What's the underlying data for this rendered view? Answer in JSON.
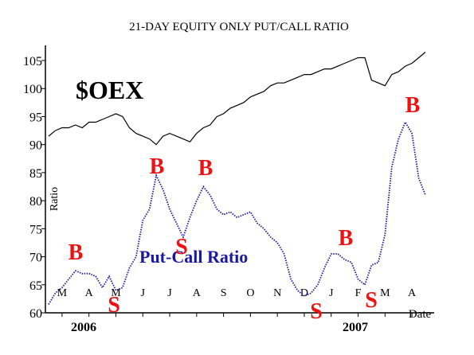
{
  "chart_data": {
    "type": "line",
    "title": "21-DAY EQUITY ONLY PUT/CALL RATIO",
    "y_label": "Ratio",
    "x_label": "Date",
    "categories": [
      null,
      null,
      "M",
      null,
      null,
      null,
      "A",
      null,
      null,
      null,
      "M",
      null,
      null,
      null,
      "J",
      null,
      null,
      null,
      "J",
      null,
      null,
      null,
      "A",
      null,
      null,
      null,
      "S",
      null,
      null,
      null,
      "O",
      null,
      null,
      null,
      "N",
      null,
      null,
      null,
      "D",
      null,
      null,
      null,
      "J",
      null,
      null,
      null,
      "F",
      null,
      null,
      null,
      "M",
      null,
      null,
      null,
      "A",
      null,
      null
    ],
    "series": [
      {
        "name": "$OEX",
        "color": "#000000",
        "values": [
          91.5,
          92.5,
          93,
          93,
          93.5,
          93,
          94,
          94,
          94.5,
          95,
          95.5,
          95,
          93,
          92,
          91.5,
          91,
          90,
          91.5,
          92,
          91.5,
          91,
          90.5,
          92,
          93,
          93.5,
          95,
          95.5,
          96.5,
          97,
          97.5,
          98.5,
          99,
          99.5,
          100.5,
          101,
          101,
          101.5,
          102,
          102.5,
          102.5,
          103,
          103.5,
          103.5,
          104,
          104.5,
          105,
          105.5,
          105.5,
          101.5,
          101,
          100.5,
          102.5,
          103,
          104,
          104.5,
          105.5,
          106.5
        ]
      },
      {
        "name": "Put-Call Ratio",
        "color": "#1a1aa0",
        "values": [
          61.5,
          63.5,
          64.5,
          66,
          67.5,
          67,
          67,
          66.5,
          64.5,
          66.5,
          64,
          64.5,
          68,
          70,
          76.5,
          78.5,
          84.5,
          82,
          78.5,
          76,
          73.5,
          77,
          80,
          82.5,
          81,
          78.5,
          77.5,
          78,
          77,
          77.5,
          78,
          76,
          75,
          73.5,
          72.5,
          70.5,
          66,
          64,
          63,
          63.5,
          65,
          68,
          70.5,
          70.5,
          69.5,
          69,
          66,
          65,
          68.5,
          69,
          74,
          86,
          91,
          94,
          92,
          84,
          81
        ]
      }
    ],
    "ylim": [
      60,
      107.7
    ],
    "yticks": [
      60,
      65,
      70,
      75,
      80,
      85,
      90,
      95,
      100,
      105
    ],
    "signals": [
      "B",
      "S",
      "B",
      "S",
      "B",
      "S",
      "B",
      "S",
      "B"
    ],
    "signal_color": "#ee1111",
    "years": [
      "2006",
      "2007"
    ]
  }
}
